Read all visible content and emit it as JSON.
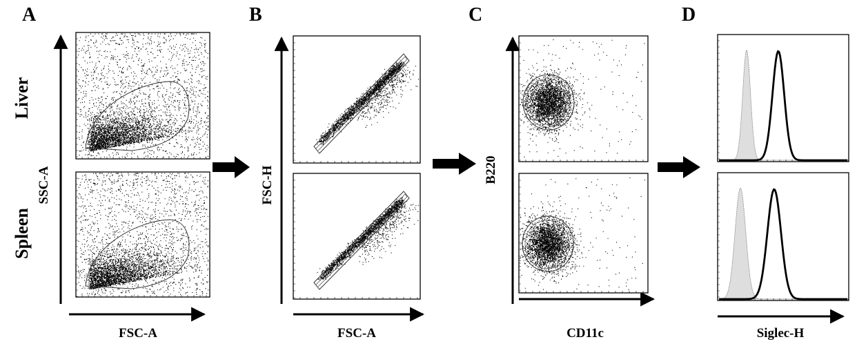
{
  "panels": {
    "a": {
      "letter": "A",
      "xlabel": "FSC-A",
      "ylabel": "SSC-A"
    },
    "b": {
      "letter": "B",
      "xlabel": "FSC-A",
      "ylabel": "FSC-H"
    },
    "c": {
      "letter": "C",
      "xlabel": "CD11c",
      "ylabel": "B220"
    },
    "d": {
      "letter": "D",
      "xlabel": "Siglec-H",
      "ylabel": ""
    }
  },
  "rows": {
    "top": "Liver",
    "bottom": "Spleen"
  },
  "colors": {
    "ink": "#000000",
    "isotype_fill": "#dedede",
    "gate": "#333333"
  }
}
